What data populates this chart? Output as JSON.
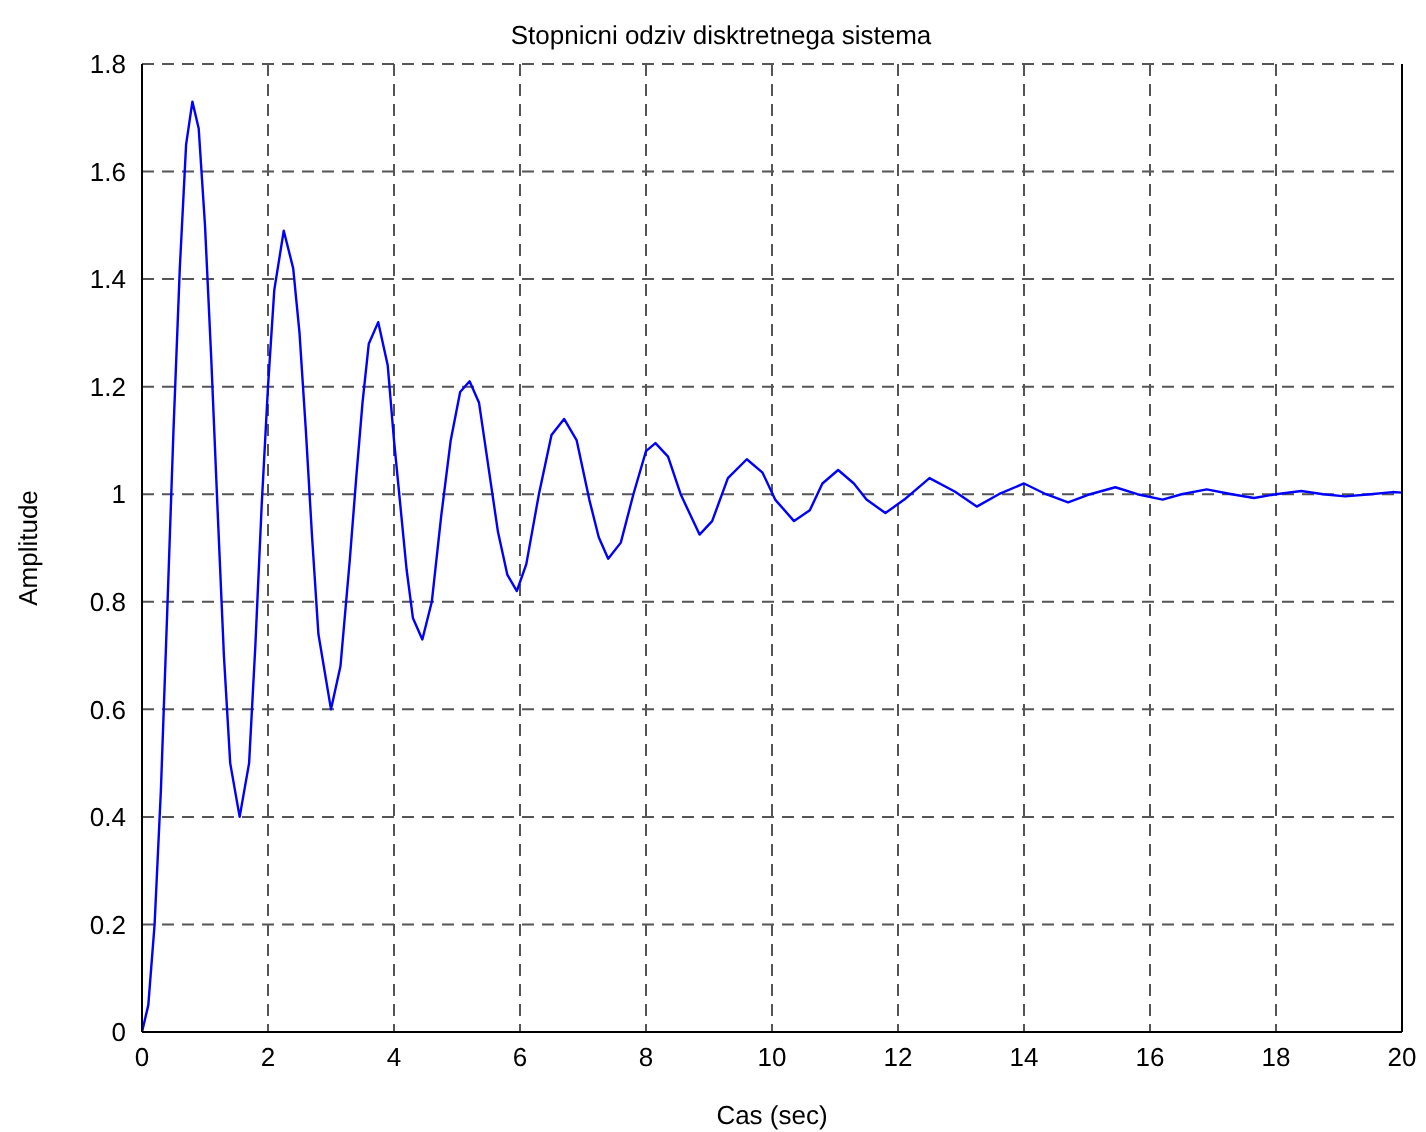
{
  "chart_data": {
    "type": "line",
    "title": "Stopnicni odziv disktretnega sistema",
    "xlabel": "Cas (sec)",
    "ylabel": "Amplitude",
    "x": [
      0,
      0.1,
      0.2,
      0.3,
      0.4,
      0.5,
      0.6,
      0.7,
      0.8,
      0.9,
      1.0,
      1.1,
      1.2,
      1.3,
      1.4,
      1.55,
      1.7,
      1.8,
      1.9,
      2.0,
      2.1,
      2.25,
      2.4,
      2.5,
      2.6,
      2.7,
      2.8,
      3.0,
      3.15,
      3.3,
      3.4,
      3.5,
      3.6,
      3.75,
      3.9,
      4.0,
      4.1,
      4.2,
      4.3,
      4.45,
      4.6,
      4.75,
      4.9,
      5.05,
      5.2,
      5.35,
      5.5,
      5.65,
      5.8,
      5.95,
      6.1,
      6.3,
      6.5,
      6.7,
      6.9,
      7.1,
      7.25,
      7.4,
      7.6,
      7.8,
      8.0,
      8.15,
      8.35,
      8.55,
      8.85,
      9.05,
      9.3,
      9.6,
      9.85,
      10.05,
      10.35,
      10.6,
      10.8,
      11.05,
      11.3,
      11.5,
      11.8,
      12.1,
      12.5,
      12.9,
      13.25,
      13.6,
      14.0,
      14.35,
      14.7,
      15.05,
      15.45,
      15.8,
      16.2,
      16.5,
      16.9,
      17.3,
      17.65,
      18.0,
      18.4,
      18.75,
      19.1,
      19.5,
      19.85,
      20
    ],
    "series": [
      {
        "color": "#0000ff",
        "values": [
          0,
          0.05,
          0.2,
          0.45,
          0.78,
          1.12,
          1.42,
          1.65,
          1.73,
          1.68,
          1.5,
          1.25,
          0.97,
          0.7,
          0.5,
          0.4,
          0.5,
          0.72,
          0.98,
          1.2,
          1.38,
          1.49,
          1.42,
          1.3,
          1.12,
          0.92,
          0.74,
          0.6,
          0.68,
          0.88,
          1.03,
          1.17,
          1.28,
          1.32,
          1.24,
          1.1,
          0.98,
          0.86,
          0.77,
          0.73,
          0.8,
          0.96,
          1.1,
          1.19,
          1.21,
          1.17,
          1.05,
          0.93,
          0.85,
          0.82,
          0.87,
          1.0,
          1.11,
          1.14,
          1.1,
          0.99,
          0.92,
          0.88,
          0.91,
          1.0,
          1.08,
          1.095,
          1.07,
          1.0,
          0.925,
          0.95,
          1.03,
          1.065,
          1.04,
          0.99,
          0.95,
          0.97,
          1.02,
          1.045,
          1.02,
          0.99,
          0.965,
          0.99,
          1.03,
          1.005,
          0.977,
          1.0,
          1.02,
          1.0,
          0.985,
          1.0,
          1.013,
          1.0,
          0.99,
          1.0,
          1.009,
          1.0,
          0.993,
          1.0,
          1.006,
          1.0,
          0.996,
          1.0,
          1.004,
          1.003
        ]
      }
    ],
    "xlim": [
      0,
      20
    ],
    "xticks": [
      0,
      2,
      4,
      6,
      8,
      10,
      12,
      14,
      16,
      18,
      20
    ],
    "ylim": [
      0,
      1.8
    ],
    "yticks": [
      0,
      0.2,
      0.4,
      0.6,
      0.8,
      1,
      1.2,
      1.4,
      1.6,
      1.8
    ],
    "grid": true,
    "line_style": "solid",
    "marker": "none"
  }
}
